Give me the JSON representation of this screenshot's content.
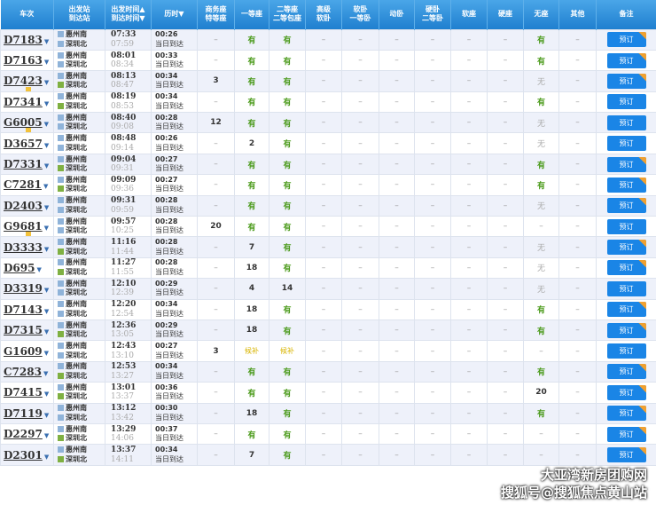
{
  "headers": [
    "车次",
    "出发站\n到达站",
    "出发时间▲\n到达时间▼",
    "历时▼",
    "商务座\n特等座",
    "一等座",
    "二等座\n二等包座",
    "高级\n软卧",
    "软卧\n一等卧",
    "动卧",
    "硬卧\n二等卧",
    "软座",
    "硬座",
    "无座",
    "其他",
    "备注"
  ],
  "from_station": "惠州南",
  "to_station": "深圳北",
  "arrive_label": "当日到达",
  "book_label": "预订",
  "rows": [
    {
      "train": "D7183",
      "dep": "07:33",
      "arr": "07:59",
      "dur": "00:26",
      "seats": [
        "–",
        "有",
        "有",
        "–",
        "–",
        "–",
        "–",
        "–",
        "–",
        "有",
        "–"
      ],
      "badge": true
    },
    {
      "train": "D7163",
      "dep": "08:01",
      "arr": "08:34",
      "dur": "00:33",
      "seats": [
        "–",
        "有",
        "有",
        "–",
        "–",
        "–",
        "–",
        "–",
        "–",
        "有",
        "–"
      ],
      "badge": true
    },
    {
      "train": "D7423",
      "dep": "08:13",
      "arr": "08:47",
      "dur": "00:34",
      "seats": [
        "3",
        "有",
        "有",
        "–",
        "–",
        "–",
        "–",
        "–",
        "–",
        "无",
        "–"
      ],
      "badge": true,
      "fu": true,
      "end": true
    },
    {
      "train": "D7341",
      "dep": "08:19",
      "arr": "08:53",
      "dur": "00:34",
      "seats": [
        "–",
        "有",
        "有",
        "–",
        "–",
        "–",
        "–",
        "–",
        "–",
        "有",
        "–"
      ],
      "end": true
    },
    {
      "train": "G6005",
      "dep": "08:40",
      "arr": "09:08",
      "dur": "00:28",
      "seats": [
        "12",
        "有",
        "有",
        "–",
        "–",
        "–",
        "–",
        "–",
        "–",
        "无",
        "–"
      ],
      "fu": true
    },
    {
      "train": "D3657",
      "dep": "08:48",
      "arr": "09:14",
      "dur": "00:26",
      "seats": [
        "–",
        "2",
        "有",
        "–",
        "–",
        "–",
        "–",
        "–",
        "–",
        "无",
        "–"
      ]
    },
    {
      "train": "D7331",
      "dep": "09:04",
      "arr": "09:31",
      "dur": "00:27",
      "seats": [
        "–",
        "有",
        "有",
        "–",
        "–",
        "–",
        "–",
        "–",
        "–",
        "有",
        "–"
      ],
      "badge": true,
      "end": true
    },
    {
      "train": "C7281",
      "dep": "09:09",
      "arr": "09:36",
      "dur": "00:27",
      "seats": [
        "–",
        "有",
        "有",
        "–",
        "–",
        "–",
        "–",
        "–",
        "–",
        "有",
        "–"
      ],
      "badge": true,
      "end": true
    },
    {
      "train": "D2403",
      "dep": "09:31",
      "arr": "09:59",
      "dur": "00:28",
      "seats": [
        "–",
        "有",
        "有",
        "–",
        "–",
        "–",
        "–",
        "–",
        "–",
        "无",
        "–"
      ],
      "badge": true
    },
    {
      "train": "G9681",
      "dep": "09:57",
      "arr": "10:25",
      "dur": "00:28",
      "seats": [
        "20",
        "有",
        "有",
        "–",
        "–",
        "–",
        "–",
        "–",
        "–",
        "–",
        "–"
      ],
      "fu": true
    },
    {
      "train": "D3333",
      "dep": "11:16",
      "arr": "11:44",
      "dur": "00:28",
      "seats": [
        "–",
        "7",
        "有",
        "–",
        "–",
        "–",
        "–",
        "–",
        "–",
        "无",
        "–"
      ],
      "badge": true,
      "end": true
    },
    {
      "train": "D695",
      "dep": "11:27",
      "arr": "11:55",
      "dur": "00:28",
      "seats": [
        "–",
        "18",
        "有",
        "–",
        "–",
        "–",
        "–",
        "–",
        "–",
        "无",
        "–"
      ],
      "badge": true,
      "end": true
    },
    {
      "train": "D3319",
      "dep": "12:10",
      "arr": "12:39",
      "dur": "00:29",
      "seats": [
        "–",
        "4",
        "14",
        "–",
        "–",
        "–",
        "–",
        "–",
        "–",
        "无",
        "–"
      ]
    },
    {
      "train": "D7143",
      "dep": "12:20",
      "arr": "12:54",
      "dur": "00:34",
      "seats": [
        "–",
        "18",
        "有",
        "–",
        "–",
        "–",
        "–",
        "–",
        "–",
        "有",
        "–"
      ],
      "badge": true
    },
    {
      "train": "D7315",
      "dep": "12:36",
      "arr": "13:05",
      "dur": "00:29",
      "seats": [
        "–",
        "18",
        "有",
        "–",
        "–",
        "–",
        "–",
        "–",
        "–",
        "有",
        "–"
      ],
      "badge": true,
      "end": true
    },
    {
      "train": "G1609",
      "dep": "12:43",
      "arr": "13:10",
      "dur": "00:27",
      "seats": [
        "3",
        "候补",
        "候补",
        "–",
        "–",
        "–",
        "–",
        "–",
        "–",
        "–",
        "–"
      ]
    },
    {
      "train": "C7283",
      "dep": "12:53",
      "arr": "13:27",
      "dur": "00:34",
      "seats": [
        "–",
        "有",
        "有",
        "–",
        "–",
        "–",
        "–",
        "–",
        "–",
        "有",
        "–"
      ],
      "badge": true,
      "end": true
    },
    {
      "train": "D7415",
      "dep": "13:01",
      "arr": "13:37",
      "dur": "00:36",
      "seats": [
        "–",
        "有",
        "有",
        "–",
        "–",
        "–",
        "–",
        "–",
        "–",
        "20",
        "–"
      ],
      "badge": true,
      "end": true
    },
    {
      "train": "D7119",
      "dep": "13:12",
      "arr": "13:42",
      "dur": "00:30",
      "seats": [
        "–",
        "18",
        "有",
        "–",
        "–",
        "–",
        "–",
        "–",
        "–",
        "有",
        "–"
      ],
      "badge": true
    },
    {
      "train": "D2297",
      "dep": "13:29",
      "arr": "14:06",
      "dur": "00:37",
      "seats": [
        "–",
        "有",
        "有",
        "–",
        "–",
        "–",
        "–",
        "–",
        "–",
        "–",
        "–"
      ],
      "badge": true,
      "end": true
    },
    {
      "train": "D2301",
      "dep": "13:37",
      "arr": "14:11",
      "dur": "00:34",
      "seats": [
        "–",
        "7",
        "有",
        "–",
        "–",
        "–",
        "–",
        "–",
        "–",
        "–",
        "–"
      ],
      "badge": true,
      "end": true
    }
  ],
  "watermark": {
    "line1": "大亚湾新房团购网",
    "line2": "搜狐号@搜狐焦点黄山站"
  },
  "colors": {
    "header": "#1f7fcf",
    "available": "#4a9a1a",
    "book": "#1a85e6",
    "badge": "#f0a030"
  }
}
